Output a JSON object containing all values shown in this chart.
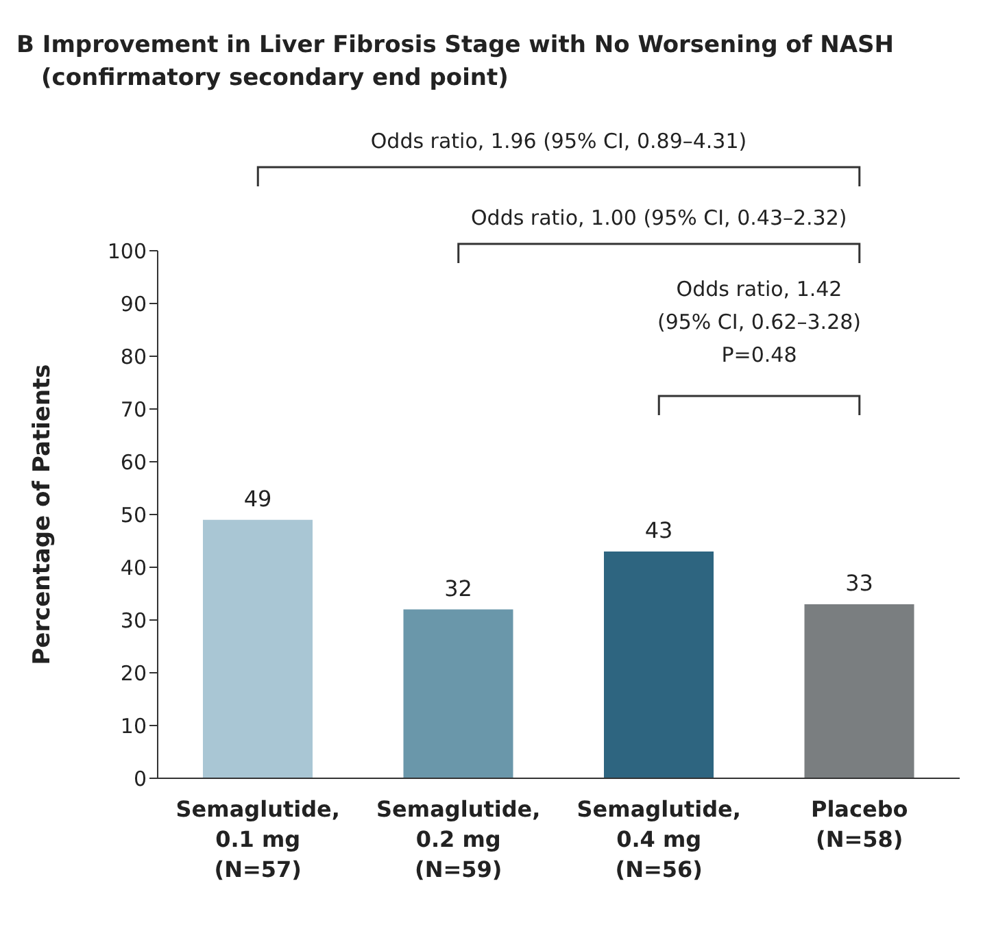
{
  "chart_data": {
    "type": "bar",
    "title": "B Improvement in Liver Fibrosis Stage with No Worsening of NASH",
    "subtitle": "(confirmatory secondary end point)",
    "ylabel": "Percentage of Patients",
    "categories": [
      "Semaglutide,\n0.1 mg\n(N=57)",
      "Semaglutide,\n0.2 mg\n(N=59)",
      "Semaglutide,\n0.4 mg\n(N=56)",
      "Placebo\n(N=58)"
    ],
    "values": [
      49,
      32,
      43,
      33
    ],
    "colors": [
      "#a9c6d4",
      "#6a97aa",
      "#2e6580",
      "#7a7e80"
    ],
    "ylim": [
      0,
      100
    ],
    "yticks": [
      0,
      10,
      20,
      30,
      40,
      50,
      60,
      70,
      80,
      90,
      100
    ],
    "data_labels": true,
    "annotations": [
      "Odds ratio, 1.96 (95% CI, 0.89–4.31)",
      "Odds ratio, 1.00 (95% CI, 0.43–2.32)",
      "Odds ratio, 1.42\n(95% CI, 0.62–3.28)\nP=0.48"
    ]
  }
}
